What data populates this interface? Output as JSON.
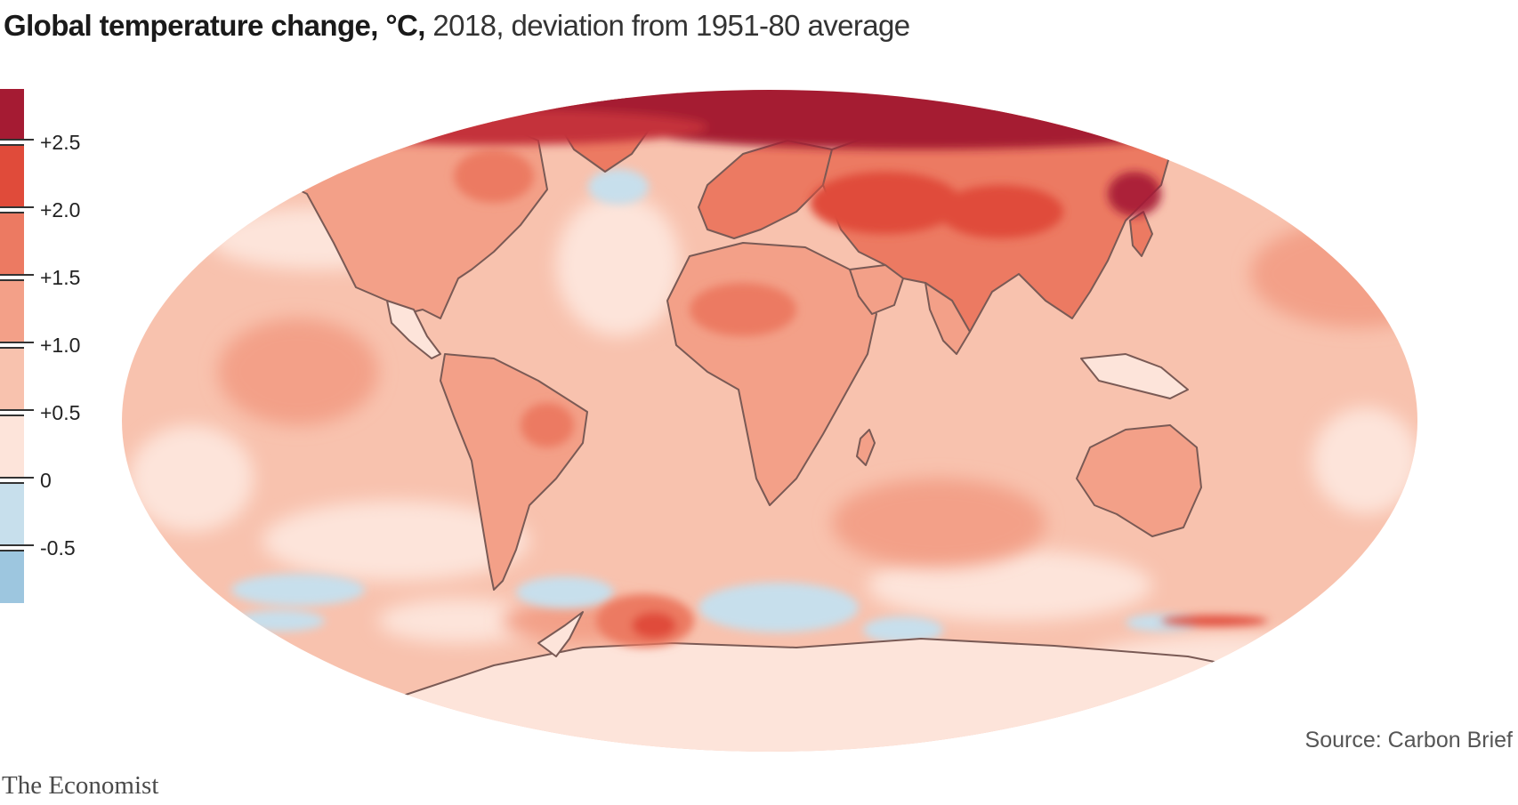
{
  "header": {
    "title_bold": "Global temperature change, °C,",
    "title_rest": " 2018, deviation from 1951-80 average"
  },
  "legend": {
    "bins": [
      {
        "color": "#a51b33"
      },
      {
        "color": "#e04b3a"
      },
      {
        "color": "#ec7a62"
      },
      {
        "color": "#f3a088"
      },
      {
        "color": "#f8c2ae"
      },
      {
        "color": "#fde4da"
      },
      {
        "color": "#c7dfec"
      },
      {
        "color": "#9dc6df"
      }
    ],
    "labels": [
      "+2.5",
      "+2.0",
      "+1.5",
      "+1.0",
      "+0.5",
      "0",
      "-0.5"
    ]
  },
  "map": {
    "land_outline_color": "#7a5a55"
  },
  "footer": {
    "source": "Source: Carbon Brief",
    "brand": "The Economist"
  }
}
